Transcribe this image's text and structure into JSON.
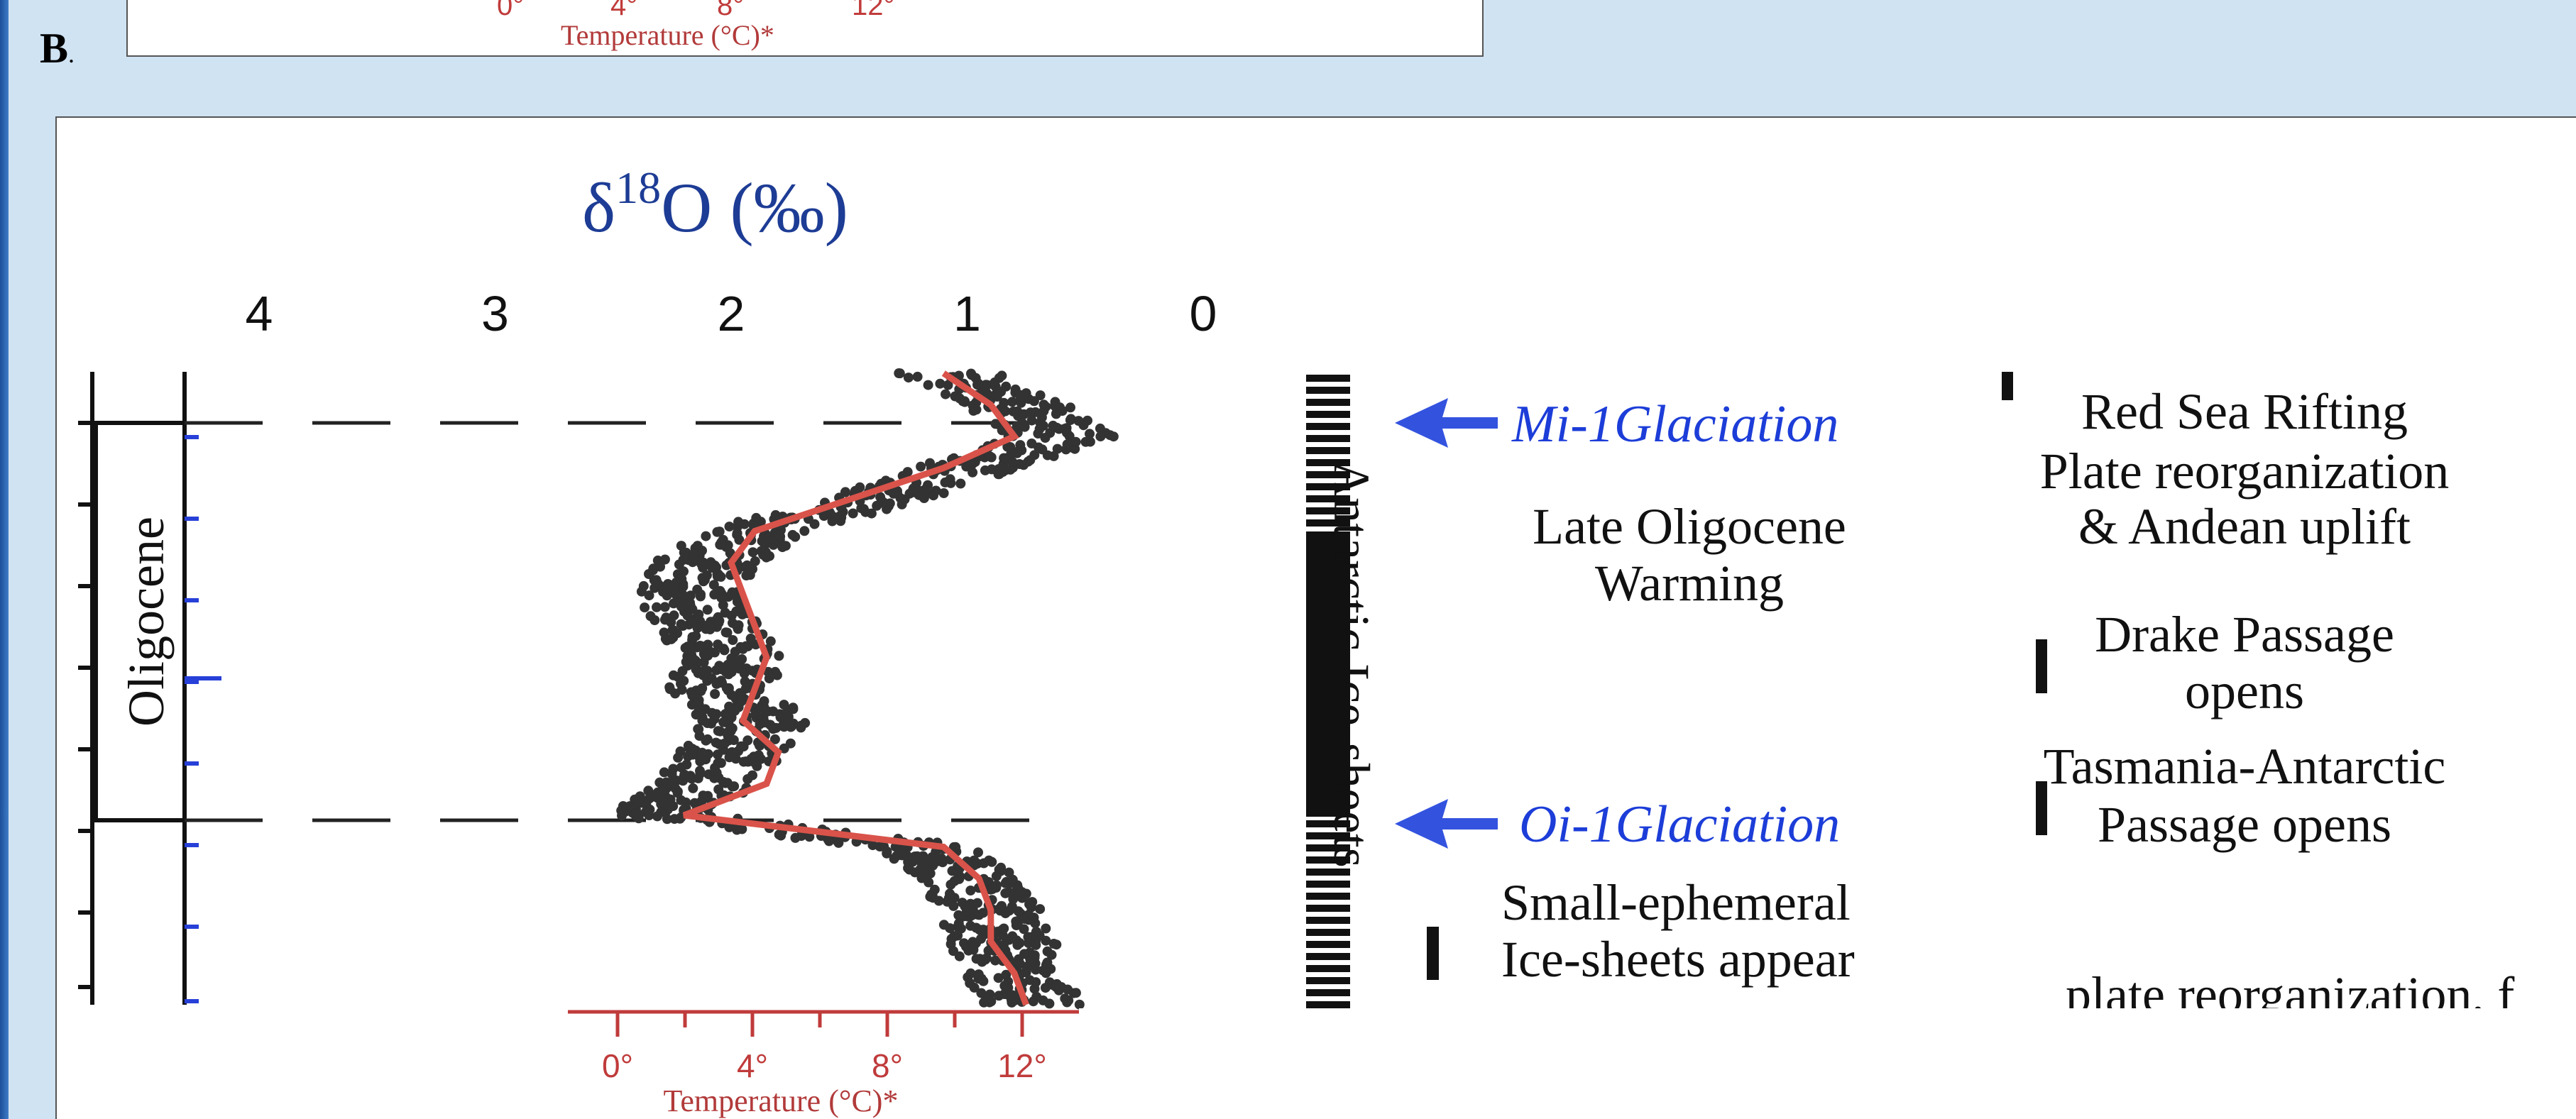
{
  "panel_letter": "B",
  "panel_letter_dot": ".",
  "top_fragment": {
    "tick_labels": [
      "0°",
      "4°",
      "8°",
      "12°"
    ],
    "temperature_label": "Temperature (°C)*"
  },
  "chart_data": {
    "type": "scatter",
    "title": "",
    "xlabel_prefix": "δ",
    "xlabel_sup": "18",
    "xlabel_suffix": "O (‰)",
    "x_ticks": [
      "4",
      "3",
      "2",
      "1",
      "0"
    ],
    "xlim": [
      4,
      0
    ],
    "x_reversed": true,
    "epoch_label": "Oligocene",
    "ice_sheet_label": "Antarctic Ice-sheets",
    "secondary_axis": {
      "label": "Temperature (°C)*",
      "ticks": [
        "0°",
        "4°",
        "8°",
        "12°"
      ],
      "values": [
        0,
        4,
        8,
        12
      ]
    },
    "series": [
      {
        "name": "",
        "color": "#333333",
        "d18O_profile_from_top": [
          1.1,
          0.8,
          0.6,
          1.0,
          1.4,
          1.9,
          2.1,
          2.2,
          2.1,
          2.0,
          2.05,
          1.9,
          2.0,
          2.1,
          2.3,
          1.2,
          1.0,
          0.9,
          0.85,
          0.8,
          0.7
        ]
      },
      {
        "name": "",
        "color": "#d9534a",
        "smoothed_profile_from_top": [
          1.1,
          0.9,
          0.8,
          1.1,
          1.5,
          1.9,
          2.0,
          1.95,
          1.9,
          1.85,
          1.9,
          1.95,
          1.8,
          1.85,
          2.2,
          1.1,
          0.95,
          0.9,
          0.9,
          0.8,
          0.75
        ]
      }
    ],
    "events_mid": [
      {
        "text": "Mi-1Glaciation",
        "style": "glaciation"
      },
      {
        "text": "Late Oligocene",
        "style": "text"
      },
      {
        "text": "Warming",
        "style": "text"
      },
      {
        "text": "Oi-1Glaciation",
        "style": "glaciation"
      },
      {
        "text": "Small-ephemeral",
        "style": "text"
      },
      {
        "text": "Ice-sheets appear",
        "style": "text"
      }
    ],
    "events_right": [
      {
        "text": "Red Sea Rifting"
      },
      {
        "text": "Plate reorganization"
      },
      {
        "text": "& Andean uplift"
      },
      {
        "text": "Drake Passage"
      },
      {
        "text": "opens"
      },
      {
        "text": "Tasmania-Antarctic"
      },
      {
        "text": "Passage opens"
      },
      {
        "text": "plate reorganization, f"
      }
    ],
    "grid": false,
    "legend": "none"
  }
}
